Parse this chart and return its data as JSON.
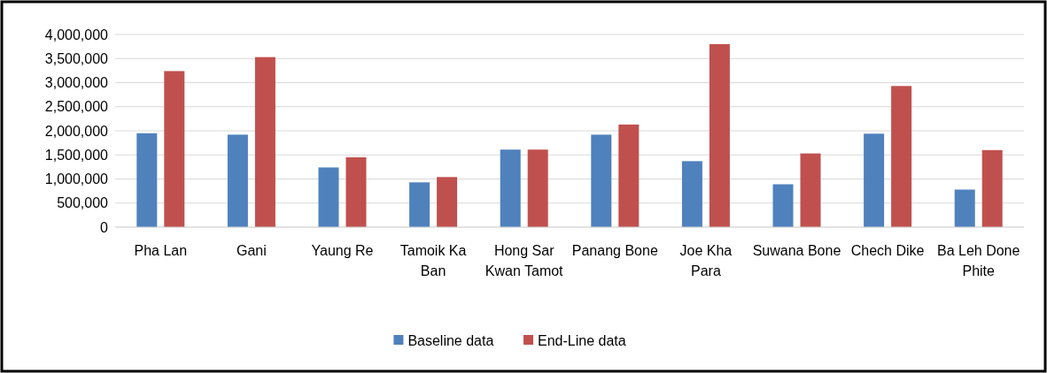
{
  "chart_data": {
    "type": "bar",
    "categories": [
      "Pha Lan",
      "Gani",
      "Yaung Re",
      "Tamoik Ka Ban",
      "Hong Sar Kwan Tamot",
      "Panang Bone",
      "Joe Kha Para",
      "Suwana Bone",
      "Chech Dike",
      "Ba Leh Done Phite"
    ],
    "series": [
      {
        "name": "Baseline data",
        "color": "#4f81bd",
        "values": [
          1950000,
          1920000,
          1240000,
          930000,
          1610000,
          1920000,
          1370000,
          890000,
          1940000,
          780000
        ]
      },
      {
        "name": "End-Line data",
        "color": "#c0504d",
        "values": [
          3240000,
          3530000,
          1450000,
          1040000,
          1610000,
          2130000,
          3800000,
          1530000,
          2930000,
          1600000
        ]
      }
    ],
    "ylim": [
      0,
      4000000
    ],
    "yticks": [
      {
        "value": 0,
        "label": "0"
      },
      {
        "value": 500000,
        "label": "500,000"
      },
      {
        "value": 1000000,
        "label": "1,000,000"
      },
      {
        "value": 1500000,
        "label": "1,500,000"
      },
      {
        "value": 2000000,
        "label": "2,000,000"
      },
      {
        "value": 2500000,
        "label": "2,500,000"
      },
      {
        "value": 3000000,
        "label": "3,000,000"
      },
      {
        "value": 3500000,
        "label": "3,500,000"
      },
      {
        "value": 4000000,
        "label": "4,000,000"
      }
    ],
    "grid": "y",
    "legend": "bottom"
  }
}
